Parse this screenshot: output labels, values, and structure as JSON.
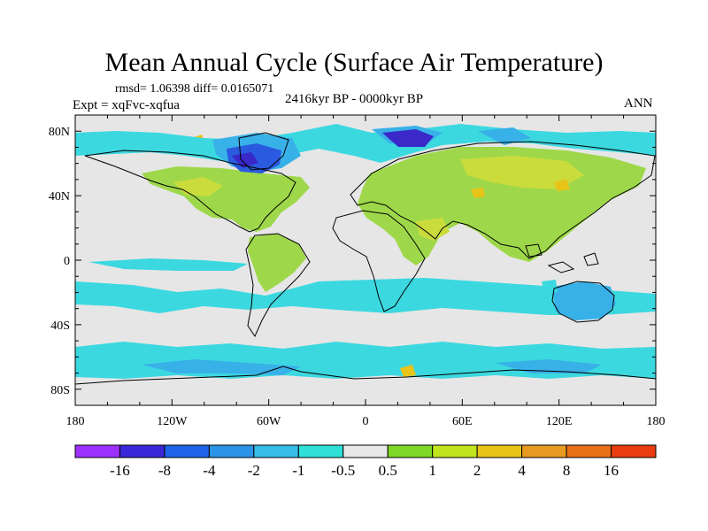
{
  "title": "Mean Annual Cycle (Surface Air Temperature)",
  "stats": "rmsd= 1.06398 diff= 0.0165071",
  "experiment": "Expt = xqFvc-xqfua",
  "period": "2416kyr BP - 0000kyr BP",
  "season": "ANN",
  "lat_ticks": [
    "80N",
    "40N",
    "0",
    "40S",
    "80S"
  ],
  "lon_ticks": [
    "180",
    "120W",
    "60W",
    "0",
    "60E",
    "120E",
    "180"
  ],
  "colorbar": {
    "labels": [
      "-16",
      "-8",
      "-4",
      "-2",
      "-1",
      "-0.5",
      "0.5",
      "1",
      "2",
      "4",
      "8",
      "16"
    ],
    "colors": [
      "#9b30ff",
      "#3a28d8",
      "#1e64e8",
      "#2c94e6",
      "#38bce8",
      "#2ee0d8",
      "#e8e8e8",
      "#7ed825",
      "#c2e420",
      "#e8c418",
      "#e89a20",
      "#e87018",
      "#e83c10"
    ]
  },
  "colors": {
    "ocean_background": "#e6e6e6",
    "coastline": "#000000",
    "land_warming": "#9ed84a",
    "land_warming_strong": "#cadc3c",
    "cooling_light": "#3cd8e0",
    "cooling_medium": "#38b0e8",
    "cooling_strong": "#2a5ae0",
    "cooling_extreme": "#3a28c8"
  }
}
